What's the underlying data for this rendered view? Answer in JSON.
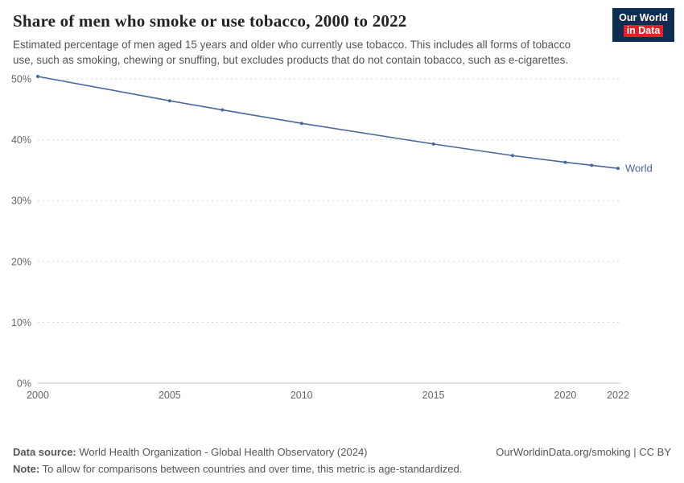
{
  "header": {
    "title": "Share of men who smoke or use tobacco, 2000 to 2022",
    "subtitle": "Estimated percentage of men aged 15 years and older who currently use tobacco. This includes all forms of tobacco use, such as smoking, chewing or snuffing, but excludes products that do not contain tobacco, such as e-cigarettes.",
    "logo": {
      "line1": "Our World",
      "line2": "in Data"
    }
  },
  "chart_data": {
    "type": "line",
    "title": "Share of men who smoke or use tobacco, 2000 to 2022",
    "xlabel": "",
    "ylabel": "",
    "xlim": [
      2000,
      2022
    ],
    "ylim": [
      0,
      50
    ],
    "x_ticks": [
      2000,
      2005,
      2010,
      2015,
      2020,
      2022
    ],
    "y_ticks": [
      0,
      10,
      20,
      30,
      40,
      50
    ],
    "y_tick_suffix": "%",
    "grid": "horizontal-dotted",
    "legend_position": "end-of-line",
    "series": [
      {
        "name": "World",
        "color": "#4a679b",
        "points": [
          [
            2000,
            50.4
          ],
          [
            2005,
            46.4
          ],
          [
            2007,
            44.9
          ],
          [
            2010,
            42.7
          ],
          [
            2015,
            39.3
          ],
          [
            2018,
            37.4
          ],
          [
            2020,
            36.3
          ],
          [
            2021,
            35.8
          ],
          [
            2022,
            35.3
          ]
        ]
      }
    ]
  },
  "footer": {
    "datasource_label": "Data source:",
    "datasource_text": " World Health Organization - Global Health Observatory (2024)",
    "note_label": "Note:",
    "note_text": " To allow for comparisons between countries and over time, this metric is age-standardized.",
    "link_text": "OurWorldinData.org/smoking | CC BY"
  }
}
